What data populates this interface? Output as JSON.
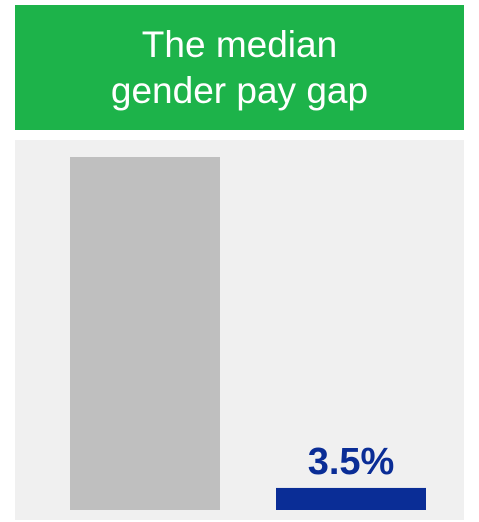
{
  "chart_data": {
    "type": "bar",
    "title": "The median gender pay gap",
    "values": [
      56,
      3.5
    ],
    "value_labels": [
      null,
      "3.5%"
    ],
    "colors": [
      "#bfbfbf",
      "#0a2d96"
    ],
    "label_color": "#0a2d96",
    "ylim": [
      0,
      56
    ]
  }
}
